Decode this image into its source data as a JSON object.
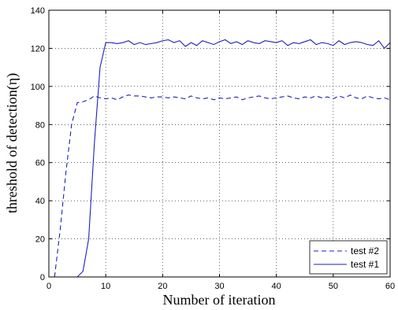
{
  "chart_data": {
    "type": "line",
    "xlabel": "Number of iteration",
    "ylabel": "threshold of detection(η)",
    "xlim": [
      0,
      60
    ],
    "ylim": [
      0,
      140
    ],
    "x_ticks": [
      0,
      10,
      20,
      30,
      40,
      50,
      60
    ],
    "y_ticks": [
      0,
      20,
      40,
      60,
      80,
      100,
      120,
      140
    ],
    "grid": true,
    "grid_style": "dotted",
    "legend_position": "bottom-right",
    "series": [
      {
        "name": "test #2",
        "style": "dashed",
        "color": "#1f1fbf",
        "x": [
          1,
          2,
          3,
          4,
          5,
          6,
          7,
          8,
          9,
          10,
          11,
          12,
          13,
          14,
          15,
          16,
          17,
          18,
          19,
          20,
          21,
          22,
          23,
          24,
          25,
          26,
          27,
          28,
          29,
          30,
          31,
          32,
          33,
          34,
          35,
          36,
          37,
          38,
          39,
          40,
          41,
          42,
          43,
          44,
          45,
          46,
          47,
          48,
          49,
          50,
          51,
          52,
          53,
          54,
          55,
          56,
          57,
          58,
          59,
          60
        ],
        "values": [
          0,
          25,
          55,
          80,
          91.5,
          92,
          93,
          95,
          94,
          93.5,
          94,
          93,
          94.5,
          95.5,
          95,
          95,
          94.5,
          94,
          94.5,
          94.5,
          94,
          94.5,
          94,
          93.5,
          95,
          94,
          93.5,
          94,
          93,
          94,
          93.5,
          94,
          94.5,
          93,
          94,
          94.5,
          95,
          94,
          93.5,
          94,
          94.5,
          95,
          94,
          93.5,
          94.5,
          94,
          95,
          94,
          94.5,
          93.5,
          95,
          94,
          95.5,
          94,
          93.5,
          95,
          94,
          93.5,
          94,
          93
        ]
      },
      {
        "name": "test #1",
        "style": "solid",
        "color": "#1f1fbf",
        "x": [
          1,
          2,
          3,
          4,
          5,
          6,
          7,
          8,
          9,
          10,
          11,
          12,
          13,
          14,
          15,
          16,
          17,
          18,
          19,
          20,
          21,
          22,
          23,
          24,
          25,
          26,
          27,
          28,
          29,
          30,
          31,
          32,
          33,
          34,
          35,
          36,
          37,
          38,
          39,
          40,
          41,
          42,
          43,
          44,
          45,
          46,
          47,
          48,
          49,
          50,
          51,
          52,
          53,
          54,
          55,
          56,
          57,
          58,
          59,
          60
        ],
        "values": [
          0,
          0,
          0,
          0,
          0,
          3,
          20,
          70,
          110,
          123,
          123,
          122.5,
          123,
          124,
          122,
          123,
          122,
          122.5,
          123,
          124,
          124.5,
          123,
          124,
          121,
          123,
          121.5,
          124,
          123,
          122,
          123.5,
          124.5,
          122.5,
          123.5,
          122,
          124,
          123,
          122.5,
          124,
          123.5,
          123,
          124,
          121.5,
          123,
          122.5,
          123.5,
          124.5,
          122,
          123,
          122.5,
          121.5,
          124,
          122,
          123,
          123.5,
          123,
          122,
          121.5,
          124,
          120,
          123
        ]
      }
    ]
  }
}
